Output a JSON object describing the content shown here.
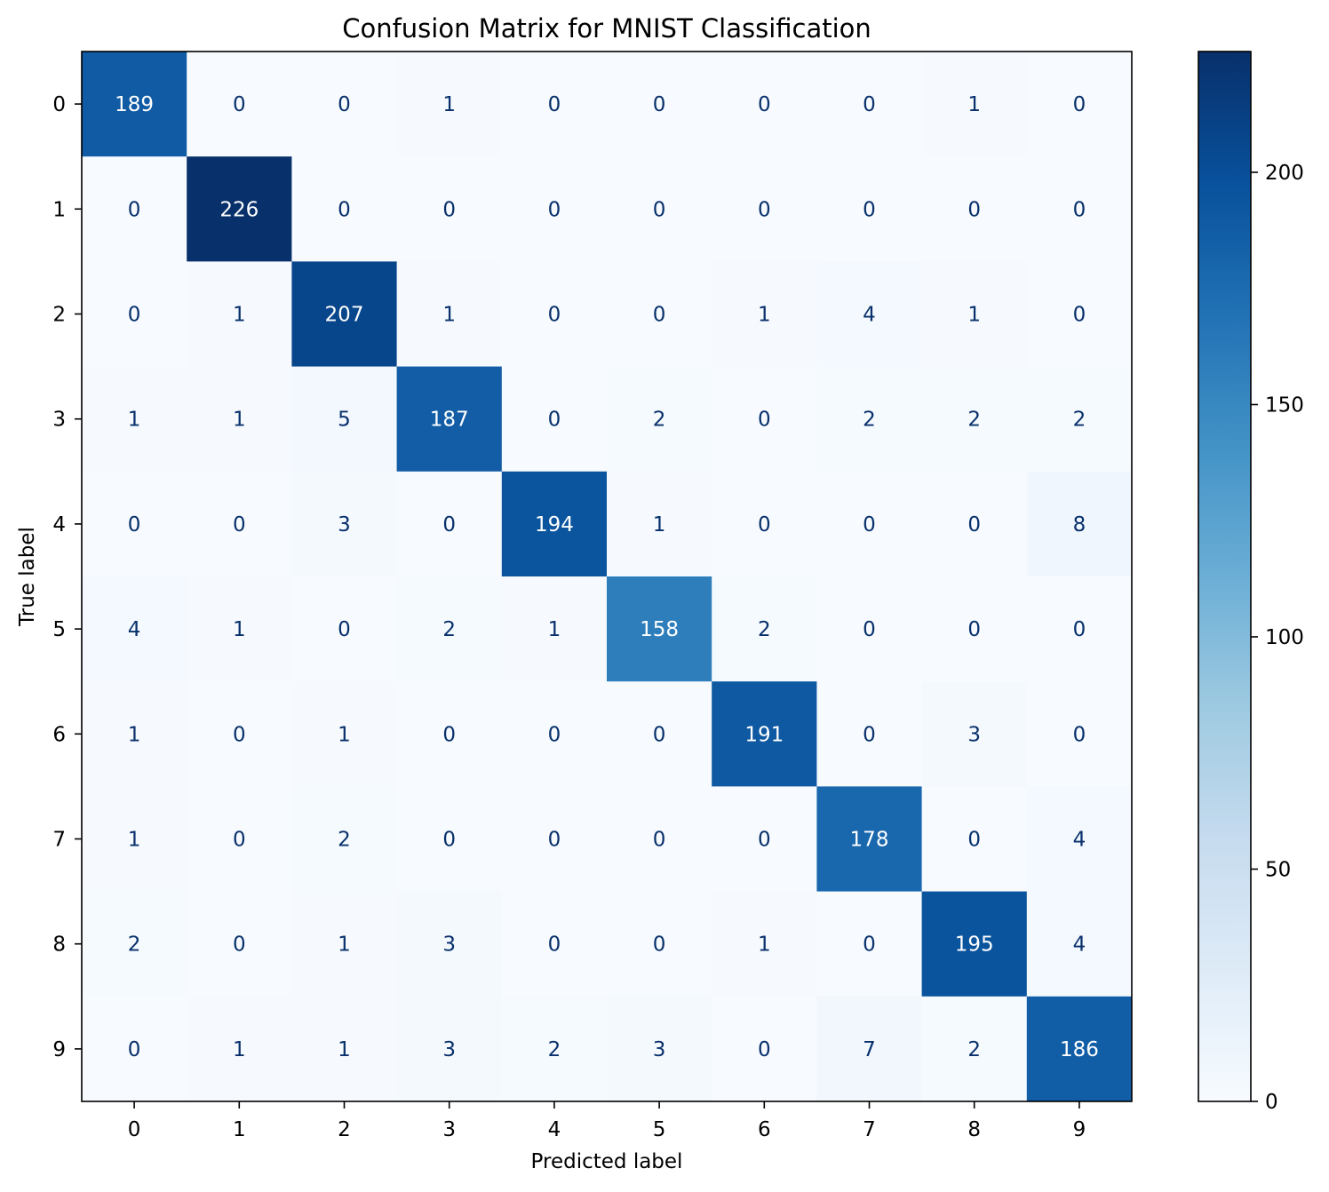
{
  "chart_data": {
    "type": "heatmap",
    "title": "Confusion Matrix for MNIST Classification",
    "xlabel": "Predicted label",
    "ylabel": "True label",
    "x_categories": [
      "0",
      "1",
      "2",
      "3",
      "4",
      "5",
      "6",
      "7",
      "8",
      "9"
    ],
    "y_categories": [
      "0",
      "1",
      "2",
      "3",
      "4",
      "5",
      "6",
      "7",
      "8",
      "9"
    ],
    "matrix": [
      [
        189,
        0,
        0,
        1,
        0,
        0,
        0,
        0,
        1,
        0
      ],
      [
        0,
        226,
        0,
        0,
        0,
        0,
        0,
        0,
        0,
        0
      ],
      [
        0,
        1,
        207,
        1,
        0,
        0,
        1,
        4,
        1,
        0
      ],
      [
        1,
        1,
        5,
        187,
        0,
        2,
        0,
        2,
        2,
        2
      ],
      [
        0,
        0,
        3,
        0,
        194,
        1,
        0,
        0,
        0,
        8
      ],
      [
        4,
        1,
        0,
        2,
        1,
        158,
        2,
        0,
        0,
        0
      ],
      [
        1,
        0,
        1,
        0,
        0,
        0,
        191,
        0,
        3,
        0
      ],
      [
        1,
        0,
        2,
        0,
        0,
        0,
        0,
        178,
        0,
        4
      ],
      [
        2,
        0,
        1,
        3,
        0,
        0,
        1,
        0,
        195,
        4
      ],
      [
        0,
        1,
        1,
        3,
        2,
        3,
        0,
        7,
        2,
        186
      ]
    ],
    "colormap": "Blues",
    "color_range": [
      0,
      226
    ],
    "colorbar_ticks": [
      "0",
      "50",
      "100",
      "150",
      "200"
    ],
    "colorbar_tick_values": [
      0,
      50,
      100,
      150,
      200
    ],
    "grid": false,
    "legend": "colorbar-right"
  }
}
